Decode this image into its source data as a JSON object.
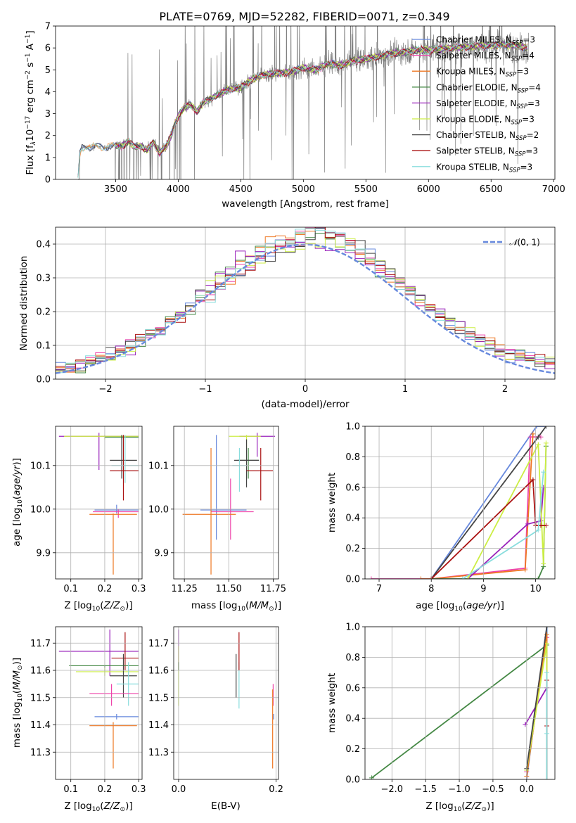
{
  "figure": {
    "title": "PLATE=0769, MJD=52282, FIBERID=0071, z=0.349"
  },
  "models": [
    {
      "label": "Chabrier MILES, N",
      "nssp": "=3",
      "color": "#6688dd"
    },
    {
      "label": "Salpeter MILES, N",
      "nssp": "=4",
      "color": "#ee44aa"
    },
    {
      "label": "Kroupa MILES, N",
      "nssp": "=3",
      "color": "#ee7722"
    },
    {
      "label": "Chabrier ELODIE, N",
      "nssp": "=4",
      "color": "#448844"
    },
    {
      "label": "Salpeter ELODIE, N",
      "nssp": "=3",
      "color": "#9922bb"
    },
    {
      "label": "Kroupa ELODIE, N",
      "nssp": "=3",
      "color": "#ccee44"
    },
    {
      "label": "Chabrier STELIB, N",
      "nssp": "=2",
      "color": "#444444"
    },
    {
      "label": "Salpeter STELIB, N",
      "nssp": "=3",
      "color": "#aa1111"
    },
    {
      "label": "Kroupa STELIB, N",
      "nssp": "=3",
      "color": "#88dddd"
    }
  ],
  "chart_data": [
    {
      "type": "line",
      "xlabel": "wavelength [Angstrom, rest frame]",
      "ylabel": "Flux [f",
      "ylabel_rest": "10",
      "ylabel_exp1": "−17",
      "ylabel_mid": " erg cm",
      "ylabel_exp2": "−2",
      "ylabel_mid2": " s",
      "ylabel_exp3": "−1",
      "ylabel_mid3": " A",
      "ylabel_exp4": "−1",
      "ylabel_end": "]",
      "xlim": [
        3020,
        7010
      ],
      "ylim": [
        0,
        7
      ],
      "xticks": [
        "3500",
        "4000",
        "4500",
        "5000",
        "5500",
        "6000",
        "6500",
        "7000"
      ],
      "yticks": [
        "0",
        "1",
        "2",
        "3",
        "4",
        "5",
        "6",
        "7"
      ],
      "data_color": "#808080",
      "continuum": {
        "x": [
          3200,
          3215,
          3230,
          3260,
          3300,
          3350,
          3400,
          3450,
          3500,
          3550,
          3600,
          3650,
          3700,
          3750,
          3800,
          3850,
          3900,
          3950,
          4000,
          4050,
          4100,
          4150,
          4200,
          4300,
          4400,
          4500,
          4600,
          4700,
          4800,
          4900,
          5000,
          5100,
          5200,
          5300,
          5400,
          5500,
          5600,
          5700,
          5800,
          5900,
          6000,
          6100,
          6200,
          6300,
          6400,
          6500,
          6600,
          6700,
          6800
        ],
        "y": [
          0.05,
          1.2,
          1.45,
          1.5,
          1.45,
          1.55,
          1.45,
          1.5,
          1.55,
          1.65,
          1.75,
          1.6,
          1.55,
          1.45,
          1.7,
          1.35,
          1.5,
          2.2,
          2.9,
          3.3,
          3.4,
          3.1,
          3.5,
          3.8,
          4.1,
          4.2,
          4.6,
          4.8,
          4.85,
          4.9,
          5.1,
          5.0,
          5.3,
          5.2,
          5.4,
          5.5,
          5.6,
          5.75,
          5.8,
          5.9,
          5.9,
          5.95,
          6.0,
          6.05,
          6.1,
          6.1,
          6.15,
          6.1,
          6.0
        ]
      }
    },
    {
      "type": "step",
      "xlabel": "(data-model)/error",
      "ylabel": "Normed distribution",
      "legend": "(0, 1)",
      "xlim": [
        -2.5,
        2.5
      ],
      "ylim": [
        0,
        0.45
      ],
      "xticks": [
        -2,
        -1,
        0,
        1,
        2
      ],
      "xtick_labels": [
        "−2",
        "−1",
        "0",
        "1",
        "2"
      ],
      "yticks": [
        0,
        0.1,
        0.2,
        0.3,
        0.4
      ],
      "ytick_labels": [
        "0.0",
        "0.1",
        "0.2",
        "0.3",
        "0.4"
      ],
      "bin_width": 0.1
    },
    {
      "type": "scatter",
      "xlabel": "Z [log",
      "ylabel": "age  [log",
      "xlim": [
        0.055,
        0.31
      ],
      "ylim": [
        9.84,
        10.19
      ],
      "xticks": [
        0.1,
        0.2,
        0.3
      ],
      "xtick_labels": [
        "0.1",
        "0.2",
        "0.3"
      ],
      "yticks": [
        9.9,
        10.0,
        10.1
      ],
      "ytick_labels": [
        "9.9",
        "10.0",
        "10.1"
      ],
      "points": [
        {
          "m": 4,
          "x": 0.183,
          "y": 10.167,
          "xe": [
            0.065,
            0.3
          ],
          "ye": [
            10.09,
            10.175
          ]
        },
        {
          "m": 5,
          "x": 0.2,
          "y": 10.167,
          "xe": [
            0.08,
            0.3
          ],
          "ye": [
            10.16,
            10.17
          ]
        },
        {
          "m": 3,
          "x": 0.25,
          "y": 10.165,
          "xe": [
            0.2,
            0.3
          ],
          "ye": [
            10.16,
            10.17
          ]
        },
        {
          "m": 6,
          "x": 0.25,
          "y": 10.112,
          "xe": [
            0.215,
            0.295
          ],
          "ye": [
            10.07,
            10.17
          ]
        },
        {
          "m": 8,
          "x": 0.26,
          "y": 10.1,
          "xe": [
            0.22,
            0.3
          ],
          "ye": [
            10.06,
            10.17
          ]
        },
        {
          "m": 7,
          "x": 0.255,
          "y": 10.088,
          "xe": [
            0.215,
            0.3
          ],
          "ye": [
            10.02,
            10.17
          ]
        },
        {
          "m": 0,
          "x": 0.235,
          "y": 9.998,
          "xe": [
            0.17,
            0.3
          ],
          "ye": [
            9.99,
            10.01
          ]
        },
        {
          "m": 1,
          "x": 0.24,
          "y": 9.994,
          "xe": [
            0.165,
            0.3
          ],
          "ye": [
            9.98,
            10.0
          ]
        },
        {
          "m": 2,
          "x": 0.225,
          "y": 9.988,
          "xe": [
            0.155,
            0.295
          ],
          "ye": [
            9.85,
            9.99
          ]
        }
      ]
    },
    {
      "type": "scatter",
      "xlabel": "mass [log",
      "xlim": [
        11.19,
        11.78
      ],
      "ylim": [
        9.84,
        10.19
      ],
      "xticks": [
        11.25,
        11.5,
        11.75
      ],
      "xtick_labels": [
        "11.25",
        "11.50",
        "11.75"
      ],
      "yticks": [
        9.9,
        10.0,
        10.1
      ],
      "ytick_labels": [
        "9.9",
        "10.0",
        "10.1"
      ],
      "points": [
        {
          "m": 4,
          "x": 11.66,
          "y": 10.167,
          "xe": [
            11.56,
            11.76
          ],
          "ye": [
            10.12,
            10.175
          ]
        },
        {
          "m": 5,
          "x": 11.6,
          "y": 10.167,
          "xe": [
            11.5,
            11.68
          ],
          "ye": [
            10.14,
            10.17
          ]
        },
        {
          "m": 3,
          "x": 11.61,
          "y": 10.112,
          "xe": [
            11.55,
            11.67
          ],
          "ye": [
            10.07,
            10.14
          ]
        },
        {
          "m": 6,
          "x": 11.6,
          "y": 10.112,
          "xe": [
            11.53,
            11.67
          ],
          "ye": [
            10.05,
            10.16
          ]
        },
        {
          "m": 8,
          "x": 11.56,
          "y": 10.1,
          "xe": [
            11.52,
            11.6
          ],
          "ye": [
            10.04,
            10.14
          ]
        },
        {
          "m": 7,
          "x": 11.68,
          "y": 10.088,
          "xe": [
            11.6,
            11.75
          ],
          "ye": [
            10.02,
            10.14
          ]
        },
        {
          "m": 0,
          "x": 11.43,
          "y": 9.998,
          "xe": [
            11.34,
            11.6
          ],
          "ye": [
            9.93,
            10.17
          ]
        },
        {
          "m": 1,
          "x": 11.51,
          "y": 9.994,
          "xe": [
            11.4,
            11.64
          ],
          "ye": [
            9.93,
            10.07
          ]
        },
        {
          "m": 2,
          "x": 11.4,
          "y": 9.988,
          "xe": [
            11.24,
            11.54
          ],
          "ye": [
            9.85,
            10.14
          ]
        }
      ]
    },
    {
      "type": "line",
      "xlabel": "age  [log",
      "ylabel": "mass weight",
      "xlim": [
        6.73,
        10.37
      ],
      "ylim": [
        0,
        1
      ],
      "xticks": [
        7,
        8,
        9,
        10
      ],
      "xtick_labels": [
        "7",
        "8",
        "9",
        "10"
      ],
      "yticks": [
        0,
        0.2,
        0.4,
        0.6,
        0.8,
        1.0
      ],
      "ytick_labels": [
        "0.0",
        "0.2",
        "0.4",
        "0.6",
        "0.8",
        "1.0"
      ],
      "series": [
        {
          "m": 0,
          "x": [
            8.0,
            10.02,
            10.2
          ],
          "y": [
            0.0,
            1.0,
            1.0
          ]
        },
        {
          "m": 1,
          "x": [
            6.85,
            8.0,
            9.8,
            9.9,
            10.1
          ],
          "y": [
            0.0,
            0.0,
            0.07,
            0.93,
            0.93
          ]
        },
        {
          "m": 2,
          "x": [
            7.8,
            8.0,
            9.8,
            9.95
          ],
          "y": [
            0.0,
            0.0,
            0.06,
            0.95
          ]
        },
        {
          "m": 3,
          "x": [
            8.0,
            10.05,
            10.15,
            10.2
          ],
          "y": [
            0.0,
            0.0,
            0.08,
            0.87
          ]
        },
        {
          "m": 4,
          "x": [
            8.7,
            9.85,
            10.1,
            10.15
          ],
          "y": [
            0.0,
            0.36,
            0.38,
            0.6
          ]
        },
        {
          "m": 5,
          "x": [
            8.7,
            10.05,
            10.15,
            10.2
          ],
          "y": [
            0.0,
            0.88,
            0.1,
            0.89
          ]
        },
        {
          "m": 6,
          "x": [
            8.0,
            10.05,
            10.2
          ],
          "y": [
            0.0,
            0.93,
            1.0
          ]
        },
        {
          "m": 7,
          "x": [
            8.0,
            9.95,
            10.0,
            10.1,
            10.2
          ],
          "y": [
            0.0,
            0.65,
            0.35,
            0.35,
            0.35
          ]
        },
        {
          "m": 8,
          "x": [
            8.6,
            10.05,
            10.15
          ],
          "y": [
            0.0,
            0.32,
            0.7
          ]
        }
      ]
    },
    {
      "type": "scatter",
      "xlabel": "Z [log",
      "ylabel": "mass [log",
      "xlim": [
        0.055,
        0.31
      ],
      "ylim": [
        11.2,
        11.76
      ],
      "xticks": [
        0.1,
        0.2,
        0.3
      ],
      "xtick_labels": [
        "0.1",
        "0.2",
        "0.3"
      ],
      "yticks": [
        11.3,
        11.4,
        11.5,
        11.6,
        11.7
      ],
      "ytick_labels": [
        "11.3",
        "11.4",
        "11.5",
        "11.6",
        "11.7"
      ],
      "points": [
        {
          "m": 4,
          "x": 0.215,
          "y": 11.67,
          "xe": [
            0.065,
            0.3
          ],
          "ye": [
            11.58,
            11.75
          ]
        },
        {
          "m": 7,
          "x": 0.26,
          "y": 11.645,
          "xe": [
            0.22,
            0.3
          ],
          "ye": [
            11.6,
            11.74
          ]
        },
        {
          "m": 3,
          "x": 0.2,
          "y": 11.617,
          "xe": [
            0.095,
            0.3
          ],
          "ye": [
            11.61,
            11.62
          ]
        },
        {
          "m": 5,
          "x": 0.2,
          "y": 11.595,
          "xe": [
            0.115,
            0.3
          ],
          "ye": [
            11.58,
            11.61
          ]
        },
        {
          "m": 6,
          "x": 0.255,
          "y": 11.58,
          "xe": [
            0.215,
            0.295
          ],
          "ye": [
            11.5,
            11.66
          ]
        },
        {
          "m": 8,
          "x": 0.27,
          "y": 11.55,
          "xe": [
            0.235,
            0.3
          ],
          "ye": [
            11.47,
            11.63
          ]
        },
        {
          "m": 1,
          "x": 0.22,
          "y": 11.515,
          "xe": [
            0.155,
            0.3
          ],
          "ye": [
            11.47,
            11.55
          ]
        },
        {
          "m": 0,
          "x": 0.235,
          "y": 11.43,
          "xe": [
            0.17,
            0.3
          ],
          "ye": [
            11.42,
            11.44
          ]
        },
        {
          "m": 2,
          "x": 0.225,
          "y": 11.397,
          "xe": [
            0.155,
            0.295
          ],
          "ye": [
            11.24,
            11.41
          ]
        }
      ]
    },
    {
      "type": "scatter",
      "xlabel": "E(B-V)",
      "xlim": [
        -0.01,
        0.205
      ],
      "ylim": [
        11.2,
        11.76
      ],
      "xticks": [
        0,
        0.2
      ],
      "xtick_labels": [
        "0.0",
        "0.2"
      ],
      "yticks": [
        11.3,
        11.4,
        11.5,
        11.6,
        11.7
      ],
      "ytick_labels": [
        "11.3",
        "11.4",
        "11.5",
        "11.6",
        "11.7"
      ],
      "points": [
        {
          "m": 4,
          "x": 0.0,
          "y": 11.67,
          "ye": [
            11.6,
            11.75
          ]
        },
        {
          "m": 5,
          "x": 0.0,
          "y": 11.6,
          "ye": [
            11.47,
            11.69
          ]
        },
        {
          "m": 3,
          "x": 0.0,
          "y": 11.617,
          "ye": [
            11.6,
            11.63
          ]
        },
        {
          "m": 6,
          "x": 0.118,
          "y": 11.58,
          "ye": [
            11.5,
            11.66
          ]
        },
        {
          "m": 8,
          "x": 0.124,
          "y": 11.55,
          "ye": [
            11.46,
            11.63
          ]
        },
        {
          "m": 7,
          "x": 0.124,
          "y": 11.645,
          "ye": [
            11.6,
            11.74
          ]
        },
        {
          "m": 0,
          "x": 0.195,
          "y": 11.43,
          "ye": [
            11.42,
            11.44
          ]
        },
        {
          "m": 1,
          "x": 0.194,
          "y": 11.515,
          "ye": [
            11.47,
            11.55
          ]
        },
        {
          "m": 2,
          "x": 0.193,
          "y": 11.397,
          "ye": [
            11.24,
            11.53
          ]
        }
      ]
    },
    {
      "type": "line",
      "xlabel": "Z [log",
      "ylabel": "mass weight",
      "xlim": [
        -2.4,
        0.42
      ],
      "ylim": [
        0,
        1
      ],
      "xticks": [
        -2.0,
        -1.5,
        -1.0,
        -0.5,
        0.0
      ],
      "xtick_labels": [
        "−2.0",
        "−1.5",
        "−1.0",
        "−0.5",
        "0.0"
      ],
      "yticks": [
        0,
        0.2,
        0.4,
        0.6,
        0.8,
        1.0
      ],
      "ytick_labels": [
        "0.0",
        "0.2",
        "0.4",
        "0.6",
        "0.8",
        "1.0"
      ],
      "series": [
        {
          "m": 3,
          "x": [
            -2.3,
            0.3,
            0.3
          ],
          "y": [
            0.01,
            0.88,
            1.0
          ]
        },
        {
          "m": 0,
          "x": [
            0.0,
            0.3,
            0.3
          ],
          "y": [
            0.0,
            1.0,
            0.0
          ]
        },
        {
          "m": 1,
          "x": [
            0.0,
            0.3,
            0.3
          ],
          "y": [
            0.05,
            0.93,
            0.0
          ]
        },
        {
          "m": 2,
          "x": [
            0.0,
            0.3,
            0.3
          ],
          "y": [
            0.02,
            0.95,
            0.0
          ]
        },
        {
          "m": 4,
          "x": [
            -0.02,
            0.3,
            0.3
          ],
          "y": [
            0.36,
            0.6,
            0.0
          ]
        },
        {
          "m": 5,
          "x": [
            0.0,
            0.3,
            0.3
          ],
          "y": [
            0.06,
            0.89,
            0.0
          ]
        },
        {
          "m": 6,
          "x": [
            0.0,
            0.3
          ],
          "y": [
            0.07,
            1.0
          ]
        },
        {
          "m": 7,
          "x": [
            0.3,
            0.3,
            0.3
          ],
          "y": [
            0.35,
            0.65,
            0.0
          ]
        },
        {
          "m": 8,
          "x": [
            0.3,
            0.3,
            0.3
          ],
          "y": [
            0.3,
            0.7,
            0.0
          ]
        }
      ]
    }
  ]
}
